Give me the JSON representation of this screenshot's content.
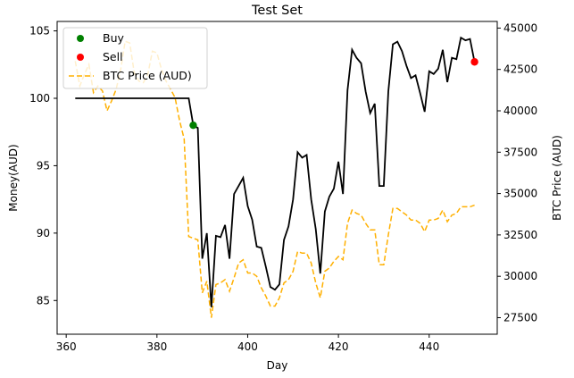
{
  "chart_data": {
    "type": "line",
    "title": "Test Set",
    "xlabel": "Day",
    "ylabel": "Money(AUD)",
    "y2label": "BTC Price (AUD)",
    "xlim": [
      358,
      455
    ],
    "ylim": [
      82.5,
      105.7
    ],
    "y2lim": [
      26500,
      45400
    ],
    "xticks": [
      360,
      380,
      400,
      420,
      440
    ],
    "yticks": [
      85,
      90,
      95,
      100,
      105
    ],
    "y2ticks": [
      27500,
      30000,
      32500,
      35000,
      37500,
      40000,
      42500,
      45000
    ],
    "grid": false,
    "legend_position": "top-left",
    "legend": [
      "Buy",
      "Sell",
      "BTC Price (AUD)"
    ],
    "colors": {
      "money": "#000000",
      "btc": "#ffb000",
      "buy": "#008000",
      "sell": "#ff0000"
    },
    "money_series": {
      "x": [
        362,
        363,
        364,
        365,
        366,
        367,
        368,
        369,
        370,
        371,
        372,
        373,
        374,
        375,
        376,
        377,
        378,
        379,
        380,
        381,
        382,
        383,
        384,
        385,
        386,
        387,
        388,
        389,
        390,
        391,
        392,
        393,
        394,
        395,
        396,
        397,
        398,
        399,
        400,
        401,
        402,
        403,
        404,
        405,
        406,
        407,
        408,
        409,
        410,
        411,
        412,
        413,
        414,
        415,
        416,
        417,
        418,
        419,
        420,
        421,
        422,
        423,
        424,
        425,
        426,
        427,
        428,
        429,
        430,
        431,
        432,
        433,
        434,
        435,
        436,
        437,
        438,
        439,
        440,
        441,
        442,
        443,
        444,
        445,
        446,
        447,
        448,
        449,
        450
      ],
      "y": [
        100,
        100,
        100,
        100,
        100,
        100,
        100,
        100,
        100,
        100,
        100,
        100,
        100,
        100,
        100,
        100,
        100,
        100,
        100,
        100,
        100,
        100,
        100,
        100,
        100,
        100,
        98,
        97.8,
        88.1,
        90,
        84.5,
        89.8,
        89.7,
        90.6,
        88.1,
        92.9,
        93.5,
        94.1,
        92,
        91,
        89,
        88.9,
        87.5,
        86,
        85.8,
        86.2,
        89.5,
        90.5,
        92.5,
        96,
        95.6,
        95.8,
        92.5,
        90.3,
        87,
        91.6,
        92.7,
        93.3,
        95.3,
        92.9,
        100.6,
        103.6,
        103,
        102.6,
        100.5,
        98.9,
        99.6,
        93.5,
        93.5,
        100.5,
        104,
        104.2,
        103.5,
        102.4,
        101.5,
        101.7,
        100.4,
        99,
        102,
        101.8,
        102.2,
        103.6,
        101.2,
        103,
        102.9,
        104.5,
        104.3,
        104.4,
        102.7
      ]
    },
    "btc_series": {
      "x": [
        362,
        363,
        364,
        365,
        366,
        367,
        368,
        369,
        370,
        371,
        372,
        373,
        374,
        375,
        376,
        377,
        378,
        379,
        380,
        381,
        382,
        383,
        384,
        385,
        386,
        387,
        388,
        389,
        390,
        391,
        392,
        393,
        394,
        395,
        396,
        397,
        398,
        399,
        400,
        401,
        402,
        403,
        404,
        405,
        406,
        407,
        408,
        409,
        410,
        411,
        412,
        413,
        414,
        415,
        416,
        417,
        418,
        419,
        420,
        421,
        422,
        423,
        424,
        425,
        426,
        427,
        428,
        429,
        430,
        431,
        432,
        433,
        434,
        435,
        436,
        437,
        438,
        439,
        440,
        441,
        442,
        443,
        444,
        445,
        446,
        447,
        448,
        449,
        450
      ],
      "y": [
        43000,
        41500,
        42200,
        42800,
        41100,
        41500,
        41200,
        40000,
        40600,
        41300,
        42500,
        44200,
        44100,
        42300,
        41800,
        41700,
        42200,
        43600,
        43500,
        42500,
        41800,
        41300,
        40800,
        39400,
        38300,
        32400,
        32300,
        32200,
        29000,
        29700,
        27500,
        29500,
        29600,
        29800,
        29100,
        29900,
        30800,
        31000,
        30200,
        30200,
        30000,
        29300,
        28800,
        28200,
        28200,
        28700,
        29600,
        29800,
        30300,
        31500,
        31400,
        31400,
        30800,
        29600,
        28700,
        30300,
        30500,
        30900,
        31200,
        31000,
        33200,
        34000,
        33800,
        33700,
        33200,
        32800,
        32800,
        30700,
        30700,
        32500,
        34100,
        34100,
        33900,
        33700,
        33400,
        33400,
        33200,
        32700,
        33400,
        33400,
        33500,
        34000,
        33300,
        33700,
        33800,
        34200,
        34200,
        34200,
        34300
      ]
    },
    "buy_points": [
      {
        "x": 388,
        "y": 98
      }
    ],
    "sell_points": [
      {
        "x": 450,
        "y": 102.7
      }
    ]
  }
}
